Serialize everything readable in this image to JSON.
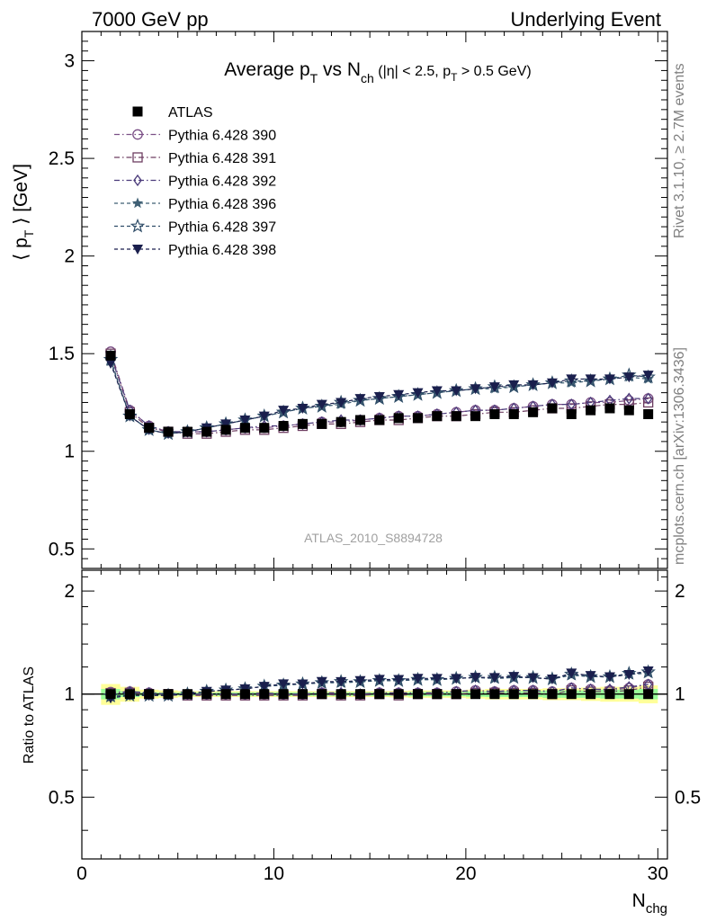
{
  "header": {
    "left": "7000 GeV pp",
    "right": "Underlying Event"
  },
  "side": {
    "rivet": "Rivet 3.1.10, ≥ 2.7M events",
    "mcplots": "mcplots.cern.ch [arXiv:1306.3436]"
  },
  "watermark": "ATLAS_2010_S8894728",
  "chart_data": {
    "type": "scatter",
    "title": {
      "main": "Average p",
      "sub1": "T",
      "mid": " vs N",
      "sub2": "ch",
      "tail1": " (|η| < 2.5, p",
      "sub3": "T",
      "tail2": " > 0.5 GeV)"
    },
    "ylabel": {
      "pre": "⟨ p",
      "sub": "T",
      "post": " ⟩ [GeV]"
    },
    "xlabel": {
      "main": "N",
      "sub": "chg"
    },
    "ratio_ylabel": "Ratio to ATLAS",
    "xlim": [
      0,
      30.5
    ],
    "ylim": [
      0.4,
      3.15
    ],
    "ratio_ylim": [
      0.33,
      2.3
    ],
    "xticks": [
      0,
      10,
      20,
      30
    ],
    "yticks": [
      0.5,
      1,
      1.5,
      2,
      2.5,
      3
    ],
    "ratio_yticks": [
      0.5,
      1,
      2
    ],
    "x": [
      1.5,
      2.5,
      3.5,
      4.5,
      5.5,
      6.5,
      7.5,
      8.5,
      9.5,
      10.5,
      11.5,
      12.5,
      13.5,
      14.5,
      15.5,
      16.5,
      17.5,
      18.5,
      19.5,
      20.5,
      21.5,
      22.5,
      23.5,
      24.5,
      25.5,
      26.5,
      27.5,
      28.5,
      29.5
    ],
    "series": [
      {
        "name": "ATLAS",
        "marker": "square",
        "color": "#000000",
        "values": [
          1.49,
          1.19,
          1.12,
          1.1,
          1.1,
          1.1,
          1.11,
          1.12,
          1.12,
          1.13,
          1.14,
          1.14,
          1.15,
          1.16,
          1.16,
          1.17,
          1.17,
          1.18,
          1.18,
          1.18,
          1.19,
          1.19,
          1.2,
          1.22,
          1.19,
          1.21,
          1.22,
          1.21,
          1.19
        ],
        "ratio_band_inner": [
          0.035,
          0.02,
          0.012,
          0.01,
          0.01,
          0.01,
          0.012,
          0.012,
          0.012,
          0.012,
          0.012,
          0.012,
          0.012,
          0.012,
          0.012,
          0.012,
          0.015,
          0.015,
          0.015,
          0.018,
          0.02,
          0.02,
          0.02,
          0.025,
          0.025,
          0.025,
          0.03,
          0.03,
          0.035
        ],
        "ratio_band_outer": [
          0.07,
          0.05,
          0.03,
          0.025,
          0.02,
          0.02,
          0.02,
          0.02,
          0.02,
          0.02,
          0.02,
          0.02,
          0.02,
          0.02,
          0.02,
          0.022,
          0.025,
          0.025,
          0.025,
          0.03,
          0.035,
          0.035,
          0.035,
          0.04,
          0.04,
          0.045,
          0.05,
          0.05,
          0.06
        ]
      },
      {
        "name": "Pythia 6.428 390",
        "marker": "circle-open",
        "color": "#7b4f86",
        "dash": "6,3,1.5,3",
        "values": [
          1.51,
          1.21,
          1.13,
          1.1,
          1.1,
          1.1,
          1.11,
          1.12,
          1.12,
          1.13,
          1.14,
          1.15,
          1.15,
          1.16,
          1.17,
          1.18,
          1.18,
          1.19,
          1.2,
          1.21,
          1.21,
          1.22,
          1.23,
          1.24,
          1.24,
          1.25,
          1.25,
          1.26,
          1.27
        ]
      },
      {
        "name": "Pythia 6.428 391",
        "marker": "square-open",
        "color": "#6e3e62",
        "dash": "6,3,1.5,3",
        "values": [
          1.5,
          1.2,
          1.12,
          1.1,
          1.09,
          1.09,
          1.1,
          1.11,
          1.11,
          1.12,
          1.13,
          1.14,
          1.14,
          1.15,
          1.16,
          1.16,
          1.17,
          1.18,
          1.18,
          1.19,
          1.2,
          1.2,
          1.21,
          1.22,
          1.22,
          1.23,
          1.24,
          1.24,
          1.25
        ]
      },
      {
        "name": "Pythia 6.428 392",
        "marker": "diamond-open",
        "color": "#4a3a7a",
        "dash": "6,3,1.5,3",
        "values": [
          1.49,
          1.21,
          1.13,
          1.1,
          1.1,
          1.1,
          1.11,
          1.12,
          1.13,
          1.13,
          1.14,
          1.15,
          1.16,
          1.16,
          1.17,
          1.18,
          1.18,
          1.19,
          1.2,
          1.21,
          1.21,
          1.22,
          1.23,
          1.24,
          1.24,
          1.25,
          1.26,
          1.27,
          1.27
        ]
      },
      {
        "name": "Pythia 6.428 396",
        "marker": "star",
        "color": "#3f5f74",
        "dash": "4,3",
        "values": [
          1.46,
          1.18,
          1.11,
          1.09,
          1.1,
          1.12,
          1.14,
          1.16,
          1.18,
          1.2,
          1.22,
          1.23,
          1.24,
          1.26,
          1.27,
          1.28,
          1.29,
          1.3,
          1.31,
          1.32,
          1.32,
          1.33,
          1.34,
          1.35,
          1.35,
          1.36,
          1.37,
          1.38,
          1.37
        ]
      },
      {
        "name": "Pythia 6.428 397",
        "marker": "star-open",
        "color": "#2f4d68",
        "dash": "4,3",
        "values": [
          1.47,
          1.18,
          1.11,
          1.09,
          1.1,
          1.12,
          1.14,
          1.16,
          1.18,
          1.2,
          1.22,
          1.23,
          1.25,
          1.26,
          1.27,
          1.28,
          1.29,
          1.3,
          1.31,
          1.32,
          1.33,
          1.33,
          1.34,
          1.35,
          1.36,
          1.36,
          1.37,
          1.39,
          1.38
        ]
      },
      {
        "name": "Pythia 6.428 398",
        "marker": "triangle-down",
        "color": "#1a1f4d",
        "dash": "4,3",
        "values": [
          1.45,
          1.18,
          1.11,
          1.09,
          1.1,
          1.12,
          1.14,
          1.16,
          1.18,
          1.21,
          1.22,
          1.24,
          1.25,
          1.27,
          1.28,
          1.29,
          1.3,
          1.31,
          1.31,
          1.32,
          1.33,
          1.34,
          1.34,
          1.35,
          1.37,
          1.37,
          1.37,
          1.38,
          1.39
        ]
      }
    ]
  }
}
